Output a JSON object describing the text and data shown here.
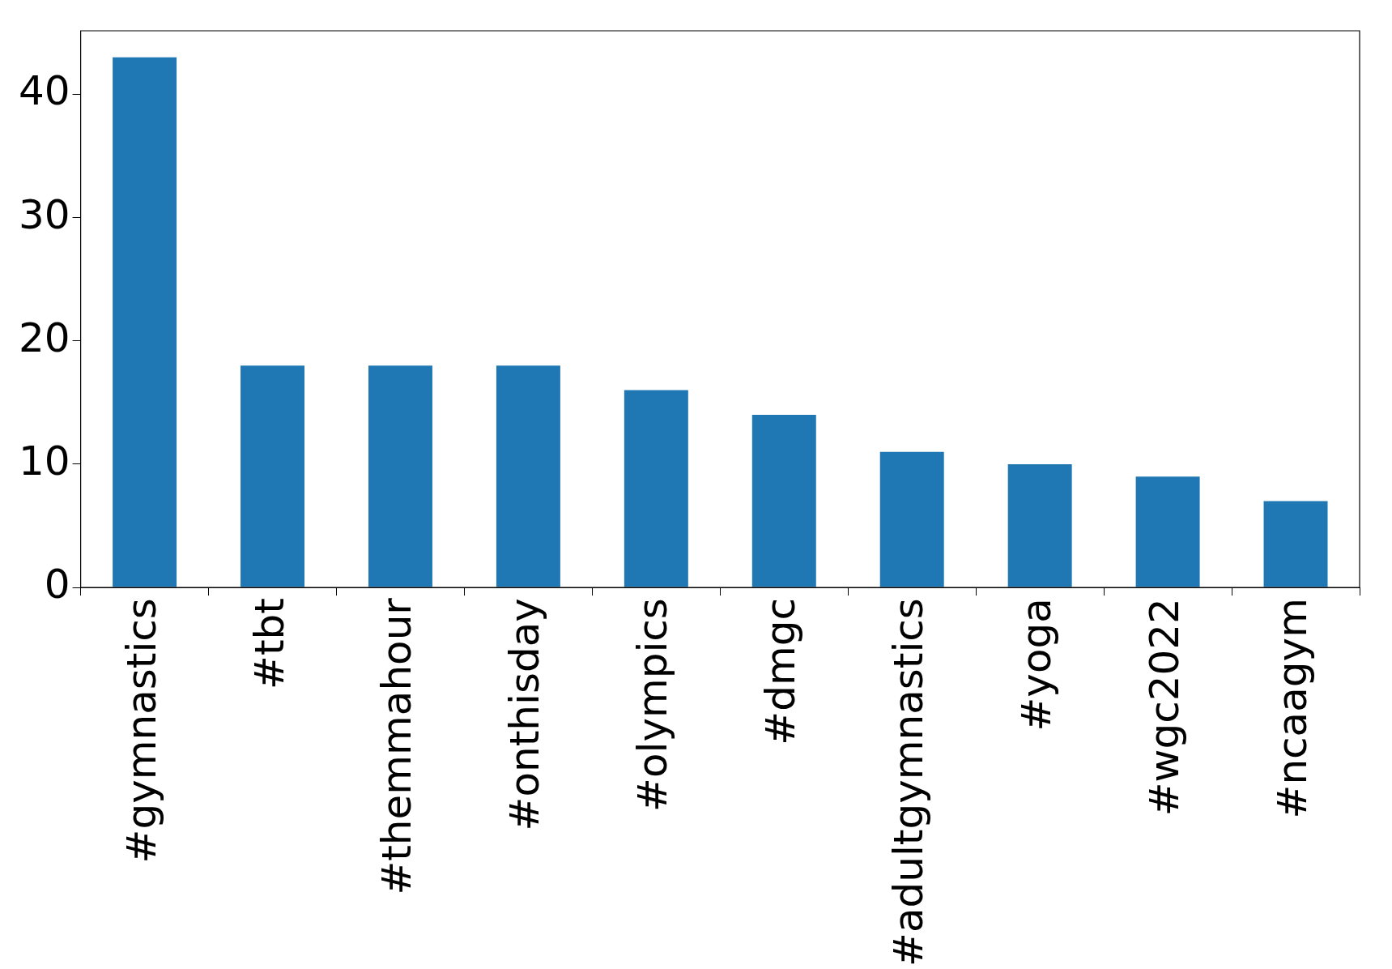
{
  "chart_data": {
    "type": "bar",
    "categories": [
      "#gymnastics",
      "#tbt",
      "#themmahour",
      "#onthisday",
      "#olympics",
      "#dmgc",
      "#adultgymnastics",
      "#yoga",
      "#wgc2022",
      "#ncaagym"
    ],
    "values": [
      43,
      18,
      18,
      18,
      16,
      14,
      11,
      10,
      9,
      7
    ],
    "color": "#1f77b4",
    "ylim": [
      0,
      45.15
    ],
    "yticks": [
      0,
      10,
      20,
      30,
      40
    ],
    "grid": false,
    "legend": false
  }
}
